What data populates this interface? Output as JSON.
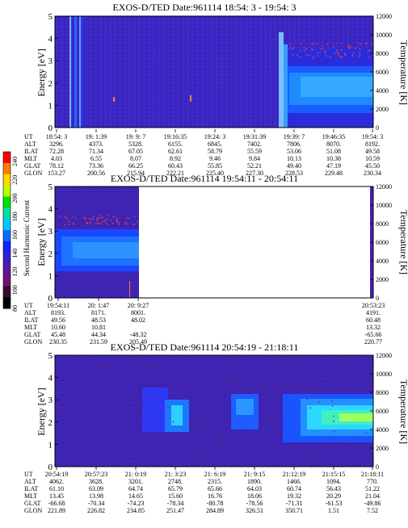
{
  "colorbar": {
    "label": "Second Harmonic Current",
    "ticks": [
      "240",
      "220",
      "200",
      "180",
      "160",
      "140",
      "120",
      "100",
      "80"
    ],
    "colors": [
      "#ff0000",
      "#ff7a00",
      "#ffd800",
      "#b8ff00",
      "#00e000",
      "#00e0a0",
      "#00c8ff",
      "#0070ff",
      "#1420ff",
      "#3a1ec8",
      "#5a1a9a",
      "#6e1470",
      "#3c0a30",
      "#000000"
    ]
  },
  "panels": [
    {
      "id": "panel1",
      "title": "EXOS-D/TED    Date:961114  18:54: 3 - 19:54: 3",
      "ylabel_left": "Energy [eV]",
      "ylabel_right": "Temperature [K]",
      "ytick_labels": [
        "0",
        "1",
        "2",
        "3",
        "4",
        "5"
      ],
      "ytick_labels_right": [
        "0",
        "2000",
        "4000",
        "6000",
        "8000",
        "10000",
        "12000"
      ],
      "row_labels": [
        "UT",
        "ALT",
        "ILAT",
        "MLT",
        "GLAT",
        "GLON"
      ],
      "columns": [
        [
          "18:54: 3",
          "3296.",
          "72.28",
          "4.03",
          "78.12",
          "153.27"
        ],
        [
          "19: 1:39",
          "4373.",
          "71.34",
          "6.55",
          "73.36",
          "200.56"
        ],
        [
          "19: 9: 7",
          "5328.",
          "67.05",
          "8.07",
          "66.25",
          "215.94"
        ],
        [
          "19:16:35",
          "6155.",
          "62.61",
          "8.92",
          "60.43",
          "222.21"
        ],
        [
          "19:24: 3",
          "6845.",
          "58.79",
          "9.46",
          "55.85",
          "225.40"
        ],
        [
          "19:31:39",
          "7402.",
          "55.59",
          "9.84",
          "52.21",
          "227.30"
        ],
        [
          "19:39: 7",
          "7806.",
          "53.06",
          "10.13",
          "49.40",
          "228.53"
        ],
        [
          "19:46:35",
          "8070.",
          "51.08",
          "10.38",
          "47.19",
          "229.48"
        ],
        [
          "19:54: 3",
          "8192.",
          "49.58",
          "10.59",
          "45.50",
          "230.34"
        ]
      ]
    },
    {
      "id": "panel2",
      "title": "EXOS-D/TED    Date:961114  19:54:11 - 20:54:11",
      "ylabel_left": "Energy [eV]",
      "ylabel_right": "Temperature [K]",
      "ytick_labels": [
        "0",
        "1",
        "2",
        "3",
        "4",
        "5"
      ],
      "ytick_labels_right": [
        "0",
        "2000",
        "4000",
        "6000",
        "8000",
        "10000",
        "12000"
      ],
      "row_labels": [
        "UT",
        "ALT",
        "ILAT",
        "MLT",
        "GLAT",
        "GLON"
      ],
      "columns": [
        [
          "19:54:11",
          "8193.",
          "49.56",
          "10.60",
          "45.48",
          "230.35"
        ],
        [
          "20: 1:47",
          "8171.",
          "48.53",
          "10.81",
          "44.34",
          "231.59"
        ],
        [
          "20: 9:27",
          "8001.",
          "48.02",
          "",
          "-48.32",
          "205.49"
        ]
      ],
      "last_column": [
        "20:53:23",
        "4191.",
        "60.48",
        "13.32",
        "-65.66",
        "220.77"
      ]
    },
    {
      "id": "panel3",
      "title": "EXOS-D/TED    Date:961114  20:54:19 - 21:18:11",
      "ylabel_left": "Energy [eV]",
      "ylabel_right": "Temperature [K]",
      "ytick_labels": [
        "0",
        "1",
        "2",
        "3",
        "4",
        "5"
      ],
      "ytick_labels_right": [
        "0",
        "2000",
        "4000",
        "6000",
        "8000",
        "10000",
        "12000"
      ],
      "row_labels": [
        "UT",
        "ALT",
        "ILAT",
        "MLT",
        "GLAT",
        "GLON"
      ],
      "columns": [
        [
          "20:54:19",
          "4062.",
          "61.10",
          "13.45",
          "-66.68",
          "221.89"
        ],
        [
          "20:57:23",
          "3628.",
          "63.09",
          "13.98",
          "-70.34",
          "226.82"
        ],
        [
          "21: 0:19",
          "3201.",
          "64.74",
          "14.65",
          "-74.23",
          "234.85"
        ],
        [
          "21: 3:23",
          "2748.",
          "65.79",
          "15.60",
          "-78.34",
          "251.47"
        ],
        [
          "21: 6:19",
          "2315.",
          "65.66",
          "16.76",
          "-80.78",
          "284.89"
        ],
        [
          "21: 9:15",
          "1890.",
          "64.03",
          "18.06",
          "-78.56",
          "326.51"
        ],
        [
          "21:12:19",
          "1466.",
          "60.74",
          "19.32",
          "-71.31",
          "350.71"
        ],
        [
          "21:15:15",
          "1094.",
          "56.43",
          "20.29",
          "-61.53",
          "1.51"
        ],
        [
          "21:18:11",
          "770.",
          "51.22",
          "21.04",
          "-49.86",
          "7.52"
        ]
      ]
    }
  ],
  "chart_data": [
    {
      "type": "heatmap",
      "title": "EXOS-D/TED    Date:961114  18:54: 3 - 19:54: 3",
      "xlabel": "UT",
      "ylabel": "Energy [eV]",
      "ylabel_right": "Temperature [K]",
      "ylim": [
        0,
        5
      ],
      "ylim_right": [
        0,
        12000
      ],
      "x": [
        "18:54: 3",
        "19: 1:39",
        "19: 9: 7",
        "19:16:35",
        "19:24: 3",
        "19:31:39",
        "19:39: 7",
        "19:46:35",
        "19:54: 3"
      ],
      "band_centre_eV": [
        null,
        null,
        null,
        null,
        null,
        null,
        2.0,
        2.0,
        2.0
      ],
      "temperature_K": [
        null,
        null,
        null,
        null,
        null,
        null,
        7500,
        7500,
        7500
      ]
    },
    {
      "type": "heatmap",
      "title": "EXOS-D/TED    Date:961114  19:54:11 - 20:54:11",
      "xlabel": "UT",
      "ylabel": "Energy [eV]",
      "ylabel_right": "Temperature [K]",
      "ylim": [
        0,
        5
      ],
      "ylim_right": [
        0,
        12000
      ],
      "x": [
        "19:54:11",
        "20: 1:47",
        "20: 9:27",
        "20:53:23"
      ],
      "band_centre_eV": [
        2.0,
        2.0,
        2.0,
        null
      ],
      "temperature_K": [
        7000,
        7000,
        6800,
        null
      ]
    },
    {
      "type": "heatmap",
      "title": "EXOS-D/TED    Date:961114  20:54:19 - 21:18:11",
      "xlabel": "UT",
      "ylabel": "Energy [eV]",
      "ylabel_right": "Temperature [K]",
      "ylim": [
        0,
        5
      ],
      "ylim_right": [
        0,
        12000
      ],
      "x": [
        "20:54:19",
        "20:57:23",
        "21: 0:19",
        "21: 3:23",
        "21: 6:19",
        "21: 9:15",
        "21:12:19",
        "21:15:15",
        "21:18:11"
      ],
      "band_centre_eV": [
        null,
        null,
        null,
        2.2,
        2.2,
        2.2,
        null,
        2.6,
        2.6
      ],
      "temperature_K": [
        null,
        null,
        null,
        null,
        null,
        null,
        null,
        2000,
        null
      ]
    }
  ]
}
